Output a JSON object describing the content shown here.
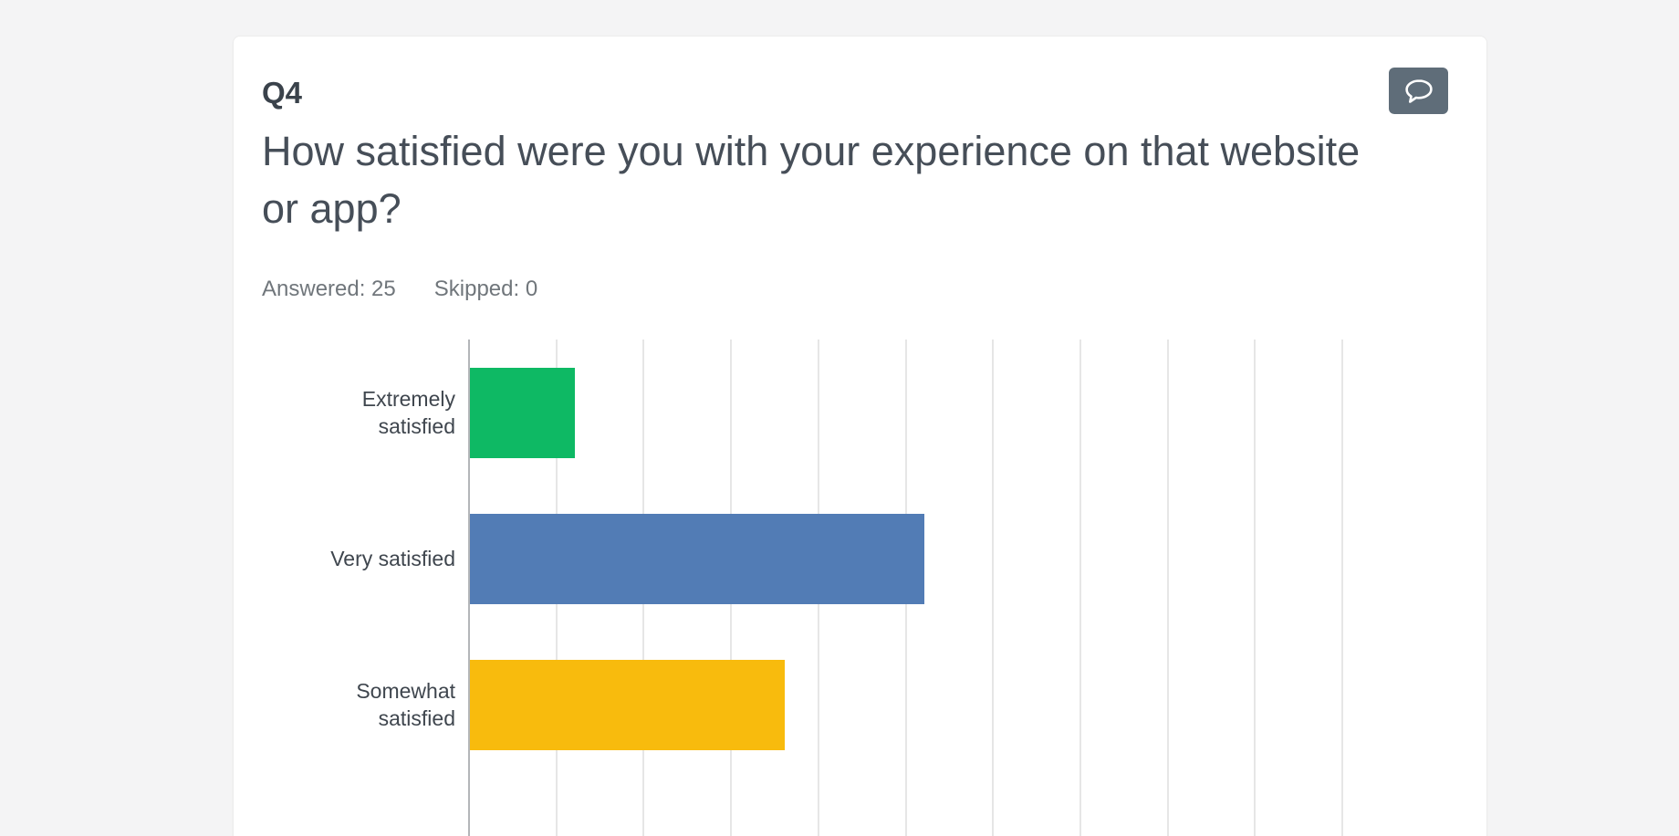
{
  "question_card": {
    "question_number": "Q4",
    "title": "How satisfied were you with your experience on that website or app?",
    "answered_label": "Answered: 25",
    "skipped_label": "Skipped: 0",
    "comment_button_icon": "speech-bubble-icon",
    "comment_button_color": "#5f6d79"
  },
  "chart_data": {
    "type": "bar",
    "orientation": "horizontal",
    "title": "How satisfied were you with your experience on that website or app?",
    "categories": [
      "Extremely satisfied",
      "Very satisfied",
      "Somewhat satisfied"
    ],
    "values_percent": [
      12,
      52,
      36
    ],
    "answered": 25,
    "skipped": 0,
    "xlabel": "",
    "ylabel": "",
    "xlim": [
      0,
      100
    ],
    "gridline_interval_percent": 10,
    "grid": true,
    "legend": "none",
    "bar_colors": [
      "#0eb964",
      "#527cb5",
      "#f8bb0d"
    ],
    "note": "x-axis tick labels cut off at bottom of viewport"
  }
}
